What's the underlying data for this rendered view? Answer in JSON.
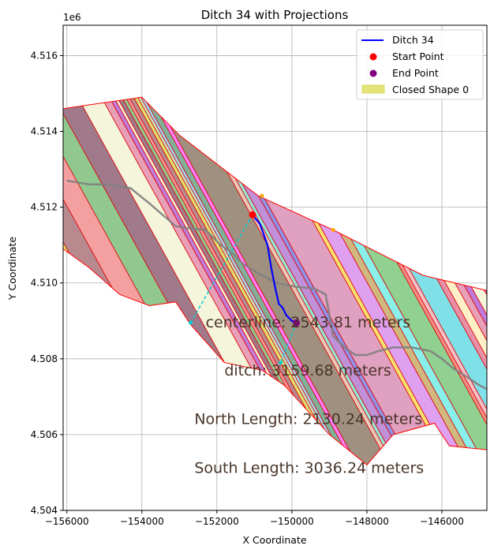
{
  "chart_data": {
    "type": "line",
    "title": "Ditch 34 with Projections",
    "xlabel": "X Coordinate",
    "ylabel": "Y Coordinate",
    "y_offset_label": "1e6",
    "xlim": [
      -156100,
      -144800
    ],
    "ylim": [
      4504000,
      4516800
    ],
    "x_ticks": [
      -156000,
      -154000,
      -152000,
      -150000,
      -148000,
      -146000
    ],
    "x_tick_labels": [
      "−156000",
      "−154000",
      "−152000",
      "−150000",
      "−148000",
      "−146000"
    ],
    "y_ticks": [
      4504000,
      4506000,
      4508000,
      4510000,
      4512000,
      4514000,
      4516000
    ],
    "y_tick_labels": [
      "4.504",
      "4.506",
      "4.508",
      "4.510",
      "4.512",
      "4.514",
      "4.516"
    ],
    "grid": true,
    "legend_placement": "top-right",
    "legend": [
      {
        "label": "Ditch 34",
        "kind": "line",
        "color": "#0000ff"
      },
      {
        "label": "Start Point",
        "kind": "point",
        "color": "#ff0000"
      },
      {
        "label": "End Point",
        "kind": "point",
        "color": "#800080"
      },
      {
        "label": "Closed Shape 0",
        "kind": "patch",
        "color": "#e3e37a"
      }
    ],
    "series": [
      {
        "name": "Ditch 34",
        "color": "#0000ff",
        "x": [
          -151050,
          -150850,
          -150650,
          -150550,
          -150450,
          -150350,
          -150250,
          -150150,
          -150000,
          -149880
        ],
        "y": [
          4511800,
          4511550,
          4511000,
          4510400,
          4509900,
          4509450,
          4509350,
          4509150,
          4509000,
          4508950
        ]
      },
      {
        "color": "#808080",
        "x": [
          -156000,
          -155400,
          -154900,
          -154300,
          -153800,
          -153100,
          -152800,
          -152300,
          -151900,
          -151600,
          -151300,
          -150800,
          -150400,
          -149900,
          -149400,
          -149100,
          -148900,
          -148600,
          -148300,
          -148000,
          -147700,
          -147300,
          -146800,
          -146300,
          -146000,
          -145700,
          -145300,
          -145000,
          -144800
        ],
        "y": [
          4512700,
          4512600,
          4512600,
          4512500,
          4512100,
          4511500,
          4511450,
          4511400,
          4511000,
          4510800,
          4510500,
          4510200,
          4510000,
          4509900,
          4509850,
          4509700,
          4508600,
          4508300,
          4508100,
          4508100,
          4508200,
          4508300,
          4508300,
          4508200,
          4508000,
          4507750,
          4507500,
          4507300,
          4507200
        ]
      }
    ],
    "start_point": {
      "x": -151050,
      "y": 4511800
    },
    "end_point": {
      "x": -149880,
      "y": 4508950
    },
    "projection_points": [
      {
        "x": -150800,
        "y": 4512300,
        "color": "#ffa500"
      },
      {
        "x": -148900,
        "y": 4511400,
        "color": "#ffa500"
      },
      {
        "x": -152700,
        "y": 4508950,
        "color": "#00ced1"
      },
      {
        "x": -150300,
        "y": 4507900,
        "color": "#00ced1"
      }
    ],
    "projection_lines": [
      {
        "x": [
          -151050,
          -152700
        ],
        "y": [
          4511800,
          4508950
        ],
        "color": "#00ced1"
      },
      {
        "x": [
          -149880,
          -150300
        ],
        "y": [
          4508950,
          4507900
        ],
        "color": "#00ced1"
      }
    ],
    "closed_shape": {
      "name": "Closed Shape 0",
      "edge_color": "#ff0000",
      "outline_x": [
        -156100,
        -154000,
        -153000,
        -150900,
        -148900,
        -146500,
        -144800,
        -144800,
        -145800,
        -146200,
        -147300,
        -148000,
        -149000,
        -150200,
        -150800,
        -151800,
        -152700,
        -153100,
        -153800,
        -154600,
        -155400,
        -156100
      ],
      "outline_y": [
        4514600,
        4514900,
        4513900,
        4512300,
        4511400,
        4510200,
        4509800,
        4505600,
        4505700,
        4506300,
        4506000,
        4505200,
        4506000,
        4507300,
        4507700,
        4507900,
        4508900,
        4509500,
        4509400,
        4509700,
        4510400,
        4510900
      ]
    },
    "annotations": [
      {
        "text": "centerline: 2543.81 meters",
        "x": -152300,
        "y": 4508970
      },
      {
        "text": "ditch: 3159.68 meters",
        "x": -151800,
        "y": 4507700
      },
      {
        "text": "North Length: 2130.24 meters",
        "x": -152600,
        "y": 4506420
      },
      {
        "text": "South Length: 3036.24 meters",
        "x": -152600,
        "y": 4505130
      }
    ]
  }
}
